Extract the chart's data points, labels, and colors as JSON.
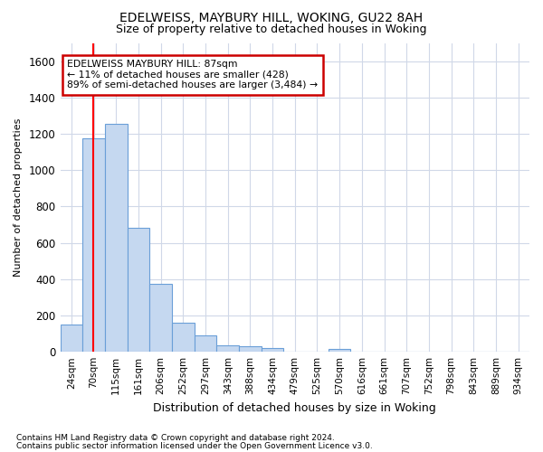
{
  "title1": "EDELWEISS, MAYBURY HILL, WOKING, GU22 8AH",
  "title2": "Size of property relative to detached houses in Woking",
  "xlabel": "Distribution of detached houses by size in Woking",
  "ylabel": "Number of detached properties",
  "categories": [
    "24sqm",
    "70sqm",
    "115sqm",
    "161sqm",
    "206sqm",
    "252sqm",
    "297sqm",
    "343sqm",
    "388sqm",
    "434sqm",
    "479sqm",
    "525sqm",
    "570sqm",
    "616sqm",
    "661sqm",
    "707sqm",
    "752sqm",
    "798sqm",
    "843sqm",
    "889sqm",
    "934sqm"
  ],
  "values": [
    150,
    1175,
    1255,
    685,
    375,
    160,
    90,
    35,
    30,
    20,
    0,
    0,
    15,
    0,
    0,
    0,
    0,
    0,
    0,
    0,
    0
  ],
  "bar_color": "#c5d8f0",
  "bar_edge_color": "#6a9fd8",
  "red_line_x": 0.98,
  "ylim": [
    0,
    1700
  ],
  "yticks": [
    0,
    200,
    400,
    600,
    800,
    1000,
    1200,
    1400,
    1600
  ],
  "annotation_line1": "EDELWEISS MAYBURY HILL: 87sqm",
  "annotation_line2": "← 11% of detached houses are smaller (428)",
  "annotation_line3": "89% of semi-detached houses are larger (3,484) →",
  "annotation_box_color": "#ffffff",
  "annotation_border_color": "#cc0000",
  "footnote1": "Contains HM Land Registry data © Crown copyright and database right 2024.",
  "footnote2": "Contains public sector information licensed under the Open Government Licence v3.0.",
  "bg_color": "#ffffff",
  "grid_color": "#d0d8e8",
  "title_fontsize": 10,
  "subtitle_fontsize": 9
}
